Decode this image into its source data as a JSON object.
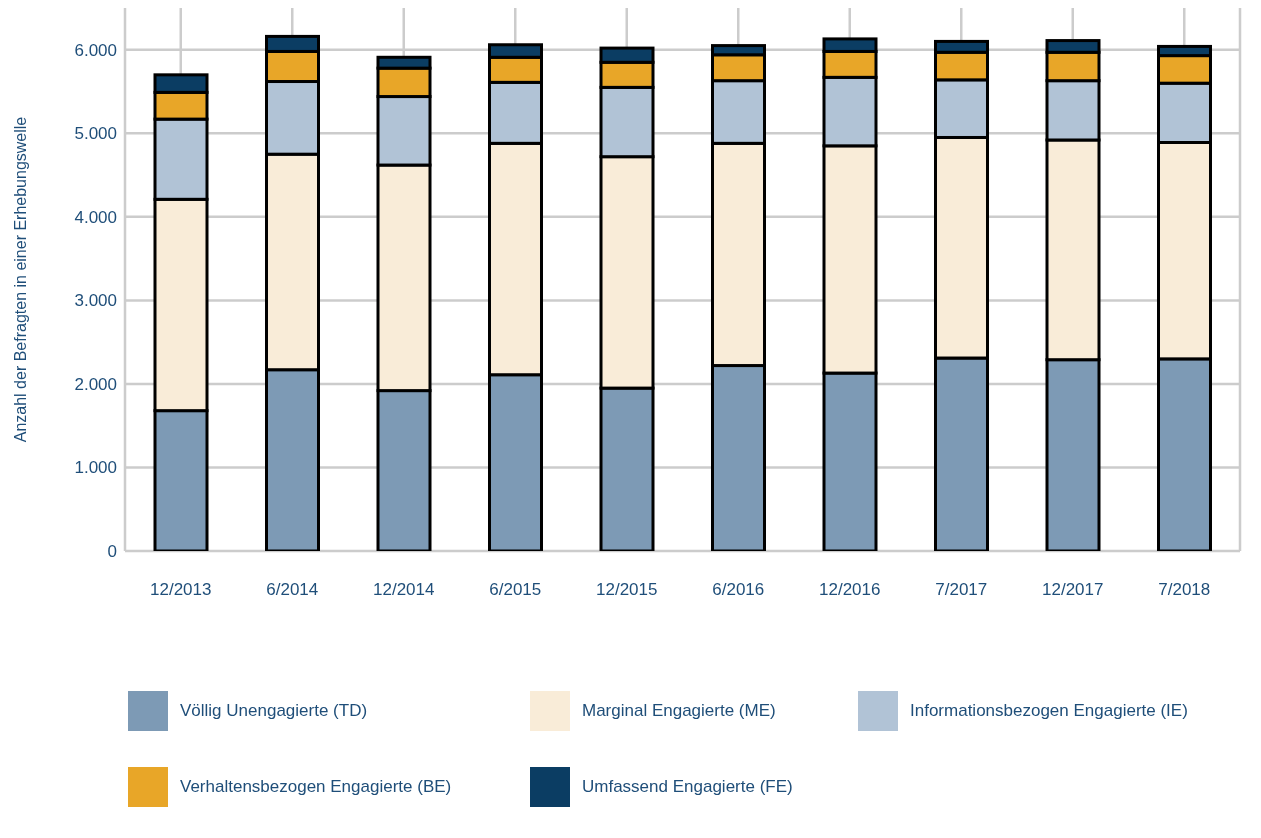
{
  "chart_data": {
    "type": "bar",
    "stacked": true,
    "ylabel": "Anzahl der Befragten in einer Erhebungswelle",
    "categories": [
      "12/2013",
      "6/2014",
      "12/2014",
      "6/2015",
      "12/2015",
      "6/2016",
      "12/2016",
      "7/2017",
      "12/2017",
      "7/2018"
    ],
    "series": [
      {
        "name": "Völlig Unengagierte (TD)",
        "color": "#7d9ab5",
        "values": [
          1680,
          2170,
          1920,
          2110,
          1950,
          2220,
          2130,
          2310,
          2290,
          2300
        ]
      },
      {
        "name": "Marginal Engagierte (ME)",
        "color": "#f9ecd8",
        "values": [
          2530,
          2580,
          2700,
          2770,
          2770,
          2660,
          2720,
          2640,
          2630,
          2590
        ]
      },
      {
        "name": "Informationsbezogen Engagierte (IE)",
        "color": "#b1c3d6",
        "values": [
          960,
          870,
          820,
          730,
          830,
          750,
          820,
          690,
          710,
          710
        ]
      },
      {
        "name": "Verhaltensbezogen Engagierte (BE)",
        "color": "#e8a628",
        "values": [
          320,
          360,
          340,
          300,
          300,
          310,
          310,
          330,
          340,
          330
        ]
      },
      {
        "name": "Umfassend Engagierte (FE)",
        "color": "#0b3d63",
        "values": [
          210,
          180,
          130,
          150,
          170,
          110,
          150,
          130,
          140,
          110
        ]
      }
    ],
    "ylim": [
      0,
      6500
    ],
    "yticks": [
      {
        "value": 0,
        "label": "0"
      },
      {
        "value": 1000,
        "label": "1.000"
      },
      {
        "value": 2000,
        "label": "2.000"
      },
      {
        "value": 3000,
        "label": "3.000"
      },
      {
        "value": 4000,
        "label": "4.000"
      },
      {
        "value": 5000,
        "label": "5.000"
      },
      {
        "value": 6000,
        "label": "6.000"
      }
    ],
    "grid": true,
    "legend": "bottom"
  }
}
